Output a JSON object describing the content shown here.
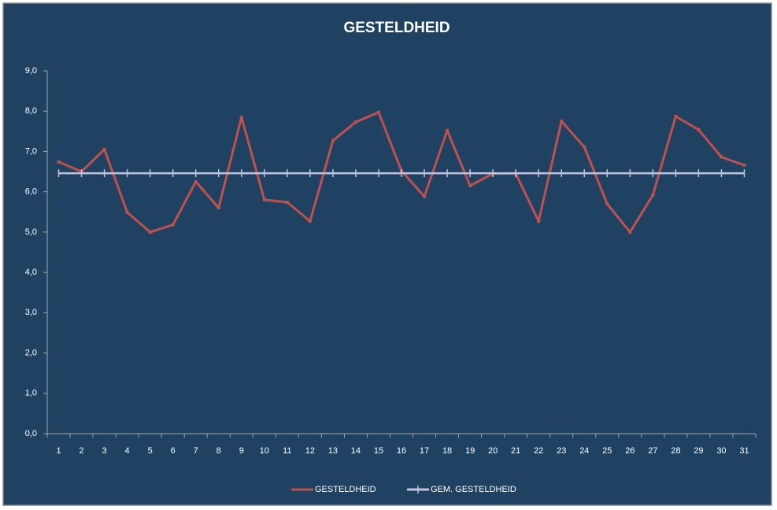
{
  "chart_data": {
    "type": "line",
    "title": "GESTELDHEID",
    "categories": [
      "1",
      "2",
      "3",
      "4",
      "5",
      "6",
      "7",
      "8",
      "9",
      "10",
      "11",
      "12",
      "13",
      "14",
      "15",
      "16",
      "17",
      "18",
      "19",
      "20",
      "21",
      "22",
      "23",
      "24",
      "25",
      "26",
      "27",
      "28",
      "29",
      "30",
      "31"
    ],
    "series": [
      {
        "name": "GESTELDHEID",
        "color": "#c0504d",
        "values": [
          6.74,
          6.5,
          7.05,
          5.49,
          5.0,
          5.18,
          6.25,
          5.6,
          7.85,
          5.8,
          5.74,
          5.27,
          7.27,
          7.73,
          7.97,
          6.52,
          5.88,
          7.52,
          6.15,
          6.45,
          6.45,
          5.27,
          7.75,
          7.11,
          5.7,
          5.0,
          5.92,
          7.87,
          7.54,
          6.86,
          6.66
        ]
      },
      {
        "name": "GEM. GESTELDHEID",
        "color": "#c3c3e0",
        "values": [
          6.46,
          6.46,
          6.46,
          6.46,
          6.46,
          6.46,
          6.46,
          6.46,
          6.46,
          6.46,
          6.46,
          6.46,
          6.46,
          6.46,
          6.46,
          6.46,
          6.46,
          6.46,
          6.46,
          6.46,
          6.46,
          6.46,
          6.46,
          6.46,
          6.46,
          6.46,
          6.46,
          6.46,
          6.46,
          6.46,
          6.46
        ]
      }
    ],
    "ylim": [
      0,
      9
    ],
    "yticks": [
      {
        "value": 0,
        "label": "0,0"
      },
      {
        "value": 1,
        "label": "1,0"
      },
      {
        "value": 2,
        "label": "2,0"
      },
      {
        "value": 3,
        "label": "3,0"
      },
      {
        "value": 4,
        "label": "4,0"
      },
      {
        "value": 5,
        "label": "5,0"
      },
      {
        "value": 6,
        "label": "6,0"
      },
      {
        "value": 7,
        "label": "7,0"
      },
      {
        "value": 8,
        "label": "8,0"
      },
      {
        "value": 9,
        "label": "9,0"
      }
    ],
    "grid": false,
    "legend": "bottom"
  }
}
